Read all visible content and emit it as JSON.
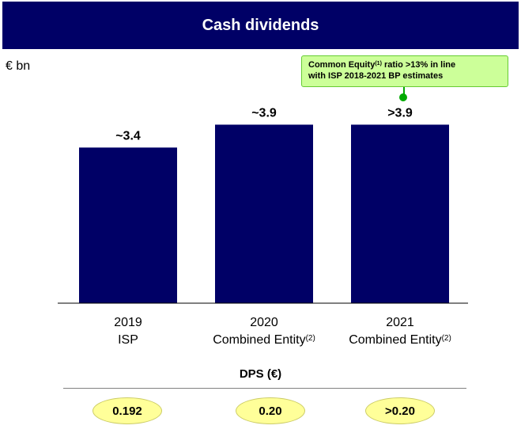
{
  "title": "Cash dividends",
  "unit_label": "€ bn",
  "callout": {
    "text_prefix": "Common Equity",
    "superscript": "(1)",
    "text_line1_suffix": " ratio >13% in line",
    "text_line2": "with ISP 2018-2021 BP estimates"
  },
  "chart_data": {
    "type": "bar",
    "categories": [
      "2019 ISP",
      "2020 Combined Entity (2)",
      "2021 Combined Entity (2)"
    ],
    "values": [
      3.4,
      3.9,
      3.9
    ],
    "data_labels": [
      "~3.4",
      "~3.9",
      ">3.9"
    ],
    "ylim": [
      0,
      4.6
    ],
    "grid": false,
    "bar_color": "#000066"
  },
  "x_labels": [
    {
      "line1": "2019",
      "line2": "ISP",
      "sup": ""
    },
    {
      "line1": "2020",
      "line2": "Combined Entity",
      "sup": "(2)"
    },
    {
      "line1": "2021",
      "line2": "Combined Entity",
      "sup": "(2)"
    }
  ],
  "dps": {
    "title": "DPS (€)",
    "values": [
      "0.192",
      "0.20",
      ">0.20"
    ]
  },
  "colors": {
    "header_bg": "#000066",
    "callout_bg": "#ccff99",
    "pill_bg": "#ffff99"
  }
}
